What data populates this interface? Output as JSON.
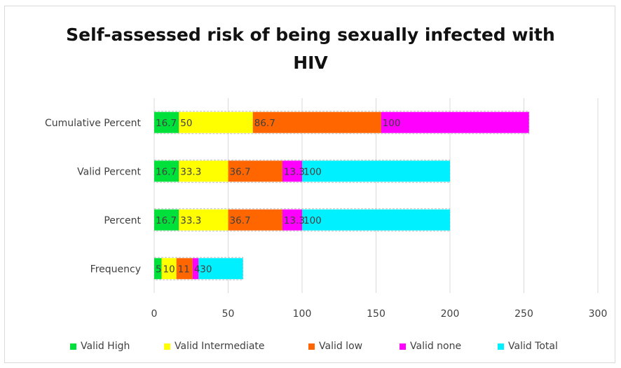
{
  "chart_data": {
    "type": "bar",
    "orientation": "horizontal",
    "stacked": true,
    "title": "Self-assessed risk of being sexually infected with\nHIV",
    "xlabel": "",
    "ylabel": "",
    "xlim": [
      0,
      300
    ],
    "x_ticks": [
      "0",
      "50",
      "100",
      "150",
      "200",
      "250",
      "300"
    ],
    "grid": true,
    "legend_position": "bottom",
    "categories": [
      "Frequency",
      "Percent",
      "Valid Percent",
      "Cumulative Percent"
    ],
    "series": [
      {
        "name": "Valid High",
        "color": "#00e03a",
        "values": [
          5,
          16.7,
          16.7,
          16.7
        ],
        "labels": [
          "5",
          "16.7",
          "16.7",
          "16.7"
        ]
      },
      {
        "name": "Valid Intermediate",
        "color": "#ffff00",
        "values": [
          10,
          33.3,
          33.3,
          50
        ],
        "labels": [
          "10",
          "33.3",
          "33.3",
          "50"
        ]
      },
      {
        "name": "Valid low",
        "color": "#ff6600",
        "values": [
          11,
          36.7,
          36.7,
          86.7
        ],
        "labels": [
          "11",
          "36.7",
          "36.7",
          "86.7"
        ]
      },
      {
        "name": "Valid none",
        "color": "#ff00ff",
        "values": [
          4,
          13.3,
          13.3,
          100
        ],
        "labels": [
          "4",
          "13.3",
          "13.3",
          "100"
        ]
      },
      {
        "name": "Valid Total",
        "color": "#00f0ff",
        "values": [
          30,
          100,
          100,
          null
        ],
        "labels": [
          "30",
          "100",
          "100",
          ""
        ]
      }
    ]
  }
}
